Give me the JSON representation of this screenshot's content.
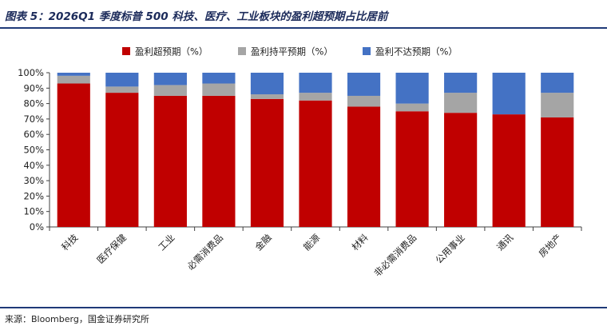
{
  "title": "图表 5：2026Q1 季度标普 500 科技、医疗、工业板块的盈利超预期占比居前",
  "source": "来源：Bloomberg，国金证券研究所",
  "colors": {
    "beat": "#c00000",
    "inline": "#a5a5a5",
    "miss": "#4472c4",
    "rule": "#1f3a78"
  },
  "chart_data": {
    "type": "bar",
    "stacked": true,
    "categories": [
      "科技",
      "医疗保健",
      "工业",
      "必需消费品",
      "金融",
      "能源",
      "材料",
      "非必需消费品",
      "公用事业",
      "通讯",
      "房地产"
    ],
    "series": [
      {
        "name": "盈利超预期（%）",
        "values": [
          93,
          87,
          85,
          85,
          83,
          82,
          78,
          75,
          74,
          73,
          71
        ]
      },
      {
        "name": "盈利持平预期（%）",
        "values": [
          5,
          4,
          7,
          8,
          3,
          5,
          7,
          5,
          13,
          0,
          16
        ]
      },
      {
        "name": "盈利不达预期（%）",
        "values": [
          2,
          9,
          8,
          7,
          14,
          13,
          15,
          20,
          13,
          27,
          13
        ]
      }
    ],
    "y_ticks": [
      "0%",
      "10%",
      "20%",
      "30%",
      "40%",
      "50%",
      "60%",
      "70%",
      "80%",
      "90%",
      "100%"
    ],
    "ylim": [
      0,
      100
    ],
    "grid": false,
    "legend": "top-center"
  }
}
